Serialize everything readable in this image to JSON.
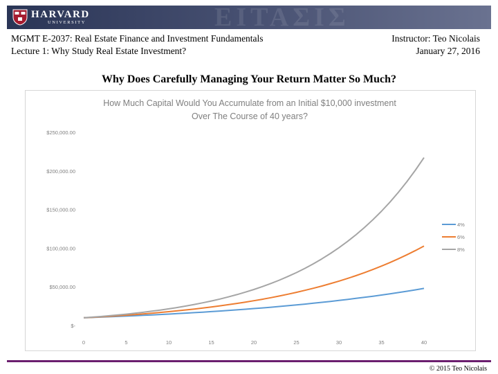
{
  "header": {
    "logo_text": "HARVARD",
    "logo_subtext": "UNIVERSITY",
    "banner_watermark": "ΕΙΤΑΣΙΣ",
    "course": "MGMT E-2037: Real Estate Finance and Investment Fundamentals",
    "lecture": "Lecture 1: Why Study Real Estate Investment?",
    "instructor": "Instructor: Teo Nicolais",
    "date": "January 27, 2016"
  },
  "slide": {
    "title": "Why Does Carefully Managing Your Return Matter So Much?"
  },
  "footer": {
    "copyright": "© 2015 Teo Nicolais"
  },
  "colors": {
    "banner": "#2a3556",
    "accent": "#6b1e6e",
    "series_4": "#5b9bd5",
    "series_6": "#ed7d31",
    "series_8": "#a5a5a5"
  },
  "chart_data": {
    "type": "line",
    "title_lines": [
      "How Much Capital Would You Accumulate from an Initial $10,000 investment",
      "Over The Course of 40 years?"
    ],
    "principal": 10000,
    "x": [
      0,
      1,
      2,
      3,
      4,
      5,
      6,
      7,
      8,
      9,
      10,
      11,
      12,
      13,
      14,
      15,
      16,
      17,
      18,
      19,
      20,
      21,
      22,
      23,
      24,
      25,
      26,
      27,
      28,
      29,
      30,
      31,
      32,
      33,
      34,
      35,
      36,
      37,
      38,
      39,
      40
    ],
    "series": [
      {
        "name": "4%",
        "rate": 0.04,
        "color": "#5b9bd5",
        "values": [
          10000,
          10400,
          10816,
          11249,
          11699,
          12167,
          12653,
          13159,
          13686,
          14233,
          14802,
          15395,
          16010,
          16651,
          17317,
          18009,
          18730,
          19479,
          20258,
          21068,
          21911,
          22788,
          23699,
          24647,
          25633,
          26658,
          27725,
          28834,
          29987,
          31187,
          32434,
          33731,
          35081,
          36484,
          37943,
          39461,
          41039,
          42681,
          44388,
          46164,
          48010
        ]
      },
      {
        "name": "6%",
        "rate": 0.06,
        "color": "#ed7d31",
        "values": [
          10000,
          10600,
          11236,
          11910,
          12625,
          13382,
          14185,
          15036,
          15938,
          16895,
          17908,
          18983,
          20122,
          21329,
          22609,
          23966,
          25404,
          26928,
          28543,
          30256,
          32071,
          33996,
          36035,
          38197,
          40489,
          42919,
          45494,
          48223,
          51117,
          54184,
          57435,
          60881,
          64534,
          68406,
          72510,
          76861,
          81473,
          86361,
          91543,
          97035,
          102857
        ]
      },
      {
        "name": "8%",
        "rate": 0.08,
        "color": "#a5a5a5",
        "values": [
          10000,
          10800,
          11664,
          12597,
          13605,
          14693,
          15869,
          17138,
          18509,
          19990,
          21589,
          23316,
          25182,
          27196,
          29372,
          31722,
          34259,
          37000,
          39960,
          43157,
          46610,
          50338,
          54365,
          58715,
          63412,
          68485,
          73964,
          79881,
          86271,
          93173,
          100627,
          108677,
          117371,
          126760,
          136901,
          147853,
          159682,
          172456,
          186253,
          201153,
          217245
        ]
      }
    ],
    "xticks": [
      0,
      5,
      10,
      15,
      20,
      25,
      30,
      35,
      40
    ],
    "ylim": [
      0,
      250000
    ],
    "yticks": [
      0,
      50000,
      100000,
      150000,
      200000,
      250000
    ],
    "ytick_labels": [
      "$-",
      "$50,000.00",
      "$100,000.00",
      "$150,000.00",
      "$200,000.00",
      "$250,000.00"
    ],
    "grid": false,
    "legend_position": "right"
  }
}
